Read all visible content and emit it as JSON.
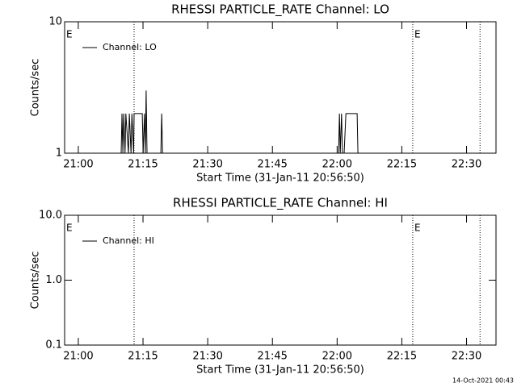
{
  "chart_data": [
    {
      "type": "line",
      "title": "RHESSI PARTICLE_RATE Channel: LO",
      "xlabel": "Start Time (31-Jan-11 20:56:50)",
      "ylabel": "Counts/sec",
      "log_y": true,
      "ylim": [
        1,
        10
      ],
      "yticks": [
        1,
        10
      ],
      "xlim": [
        0,
        100
      ],
      "xticks": [
        {
          "value": 3.17,
          "label": "21:00"
        },
        {
          "value": 18.17,
          "label": "21:15"
        },
        {
          "value": 33.17,
          "label": "21:30"
        },
        {
          "value": 48.17,
          "label": "21:45"
        },
        {
          "value": 63.17,
          "label": "22:00"
        },
        {
          "value": 78.17,
          "label": "22:15"
        },
        {
          "value": 93.17,
          "label": "22:30"
        }
      ],
      "vlines": [
        16.1,
        80.7,
        96.3
      ],
      "annotations": [
        {
          "text": "E",
          "x": 0
        },
        {
          "text": "E",
          "x": 80.7
        }
      ],
      "legend": "upper left",
      "x": [
        0,
        13.1,
        13.3,
        13.5,
        13.7,
        14.0,
        14.2,
        14.8,
        15.0,
        15.4,
        15.6,
        16.0,
        16.1,
        18.0,
        18.2,
        18.5,
        18.7,
        18.9,
        19.1,
        22.3,
        22.5,
        22.7,
        63.5,
        63.7,
        63.9,
        64.2,
        64.4,
        64.8,
        65.2,
        67.8,
        68.0,
        100
      ],
      "series": [
        {
          "name": "Channel: LO",
          "color": "#000000",
          "values": [
            1,
            1,
            2,
            1,
            2,
            1,
            2,
            1,
            2,
            1,
            2,
            1,
            2,
            2,
            1,
            2,
            1,
            3,
            1,
            1,
            2,
            1,
            1,
            2,
            1,
            2,
            1,
            1,
            2,
            2,
            1,
            1
          ]
        }
      ]
    },
    {
      "type": "line",
      "title": "RHESSI PARTICLE_RATE Channel: HI",
      "xlabel": "Start Time (31-Jan-11 20:56:50)",
      "ylabel": "Counts/sec",
      "log_y": true,
      "ylim": [
        0.1,
        10
      ],
      "yticks": [
        0.1,
        {
          "value": 1,
          "label": "1.0"
        },
        {
          "value": 10,
          "label": "10.0"
        }
      ],
      "xlim": [
        0,
        100
      ],
      "xticks": [
        {
          "value": 3.17,
          "label": "21:00"
        },
        {
          "value": 18.17,
          "label": "21:15"
        },
        {
          "value": 33.17,
          "label": "21:30"
        },
        {
          "value": 48.17,
          "label": "21:45"
        },
        {
          "value": 63.17,
          "label": "22:00"
        },
        {
          "value": 78.17,
          "label": "22:15"
        },
        {
          "value": 93.17,
          "label": "22:30"
        }
      ],
      "vlines": [
        16.1,
        80.7,
        96.3
      ],
      "annotations": [
        {
          "text": "E",
          "x": 0
        },
        {
          "text": "E",
          "x": 80.7
        }
      ],
      "legend": "upper left",
      "x": [],
      "series": [
        {
          "name": "Channel: HI",
          "color": "#000000",
          "values": []
        }
      ]
    }
  ],
  "footer": "14-Oct-2021 00:43"
}
